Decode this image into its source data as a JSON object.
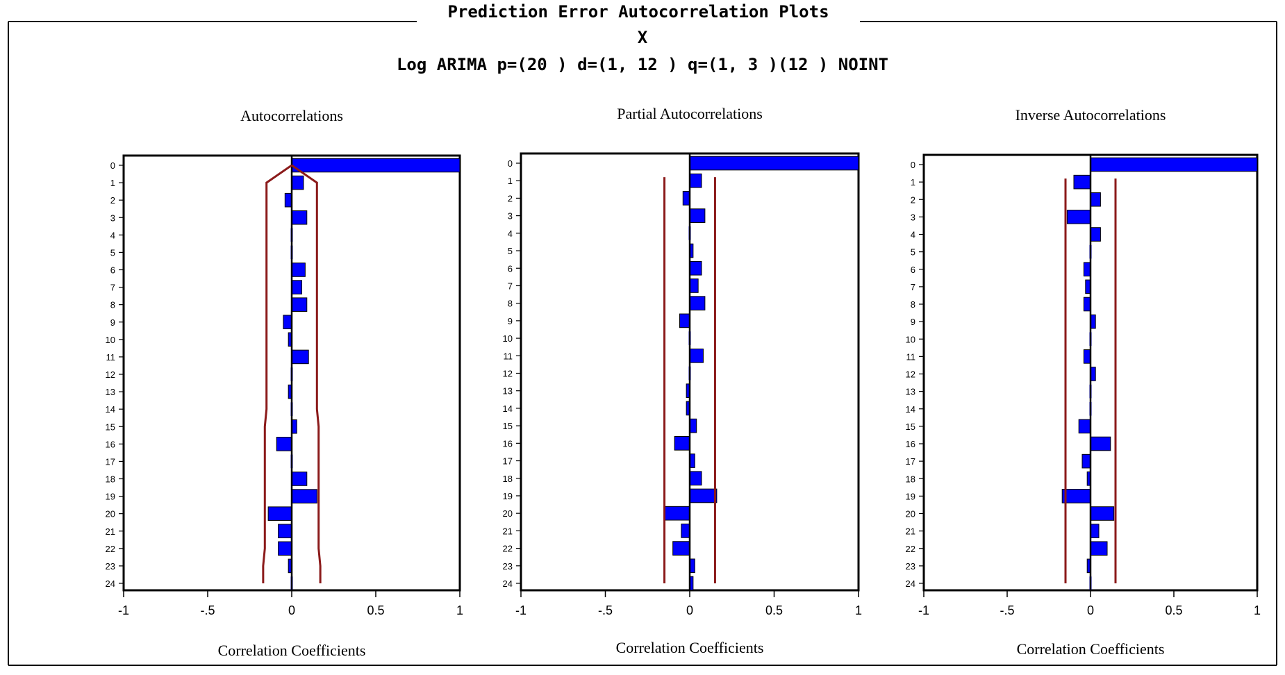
{
  "window_title": "Prediction Error Autocorrelation Plots",
  "subtitle_1": "X",
  "subtitle_2": "Log ARIMA p=(20 ) d=(1, 12 ) q=(1, 3 )(12 ) NOINT",
  "colors": {
    "bar": "#0000ff",
    "bar_edge": "#000000",
    "band": "#8b1a1a",
    "frame": "#000000",
    "background": "#ffffff"
  },
  "chart_data": [
    {
      "type": "bar",
      "orientation": "horizontal",
      "title": "Autocorrelations",
      "xlabel": "Correlation Coefficients",
      "xlim": [
        -1,
        1
      ],
      "xticks": [
        "-1",
        "-.5",
        "0",
        "0.5",
        "1"
      ],
      "xtick_values": [
        -1,
        -0.5,
        0,
        0.5,
        1
      ],
      "categories": [
        "0",
        "1",
        "2",
        "3",
        "4",
        "5",
        "6",
        "7",
        "8",
        "9",
        "10",
        "11",
        "12",
        "13",
        "14",
        "15",
        "16",
        "17",
        "18",
        "19",
        "20",
        "21",
        "22",
        "23",
        "24"
      ],
      "values": [
        1.0,
        0.07,
        -0.04,
        0.09,
        0.01,
        0.01,
        0.08,
        0.06,
        0.09,
        -0.05,
        -0.02,
        0.1,
        0.01,
        -0.02,
        0.01,
        0.03,
        -0.09,
        0.01,
        0.09,
        0.15,
        -0.14,
        -0.08,
        -0.08,
        -0.02,
        0.01
      ],
      "band_type": "widening",
      "band": [
        0.0,
        0.15,
        0.15,
        0.15,
        0.15,
        0.15,
        0.15,
        0.15,
        0.15,
        0.15,
        0.15,
        0.15,
        0.15,
        0.15,
        0.15,
        0.16,
        0.16,
        0.16,
        0.16,
        0.16,
        0.16,
        0.16,
        0.16,
        0.17,
        0.17
      ]
    },
    {
      "type": "bar",
      "orientation": "horizontal",
      "title": "Partial Autocorrelations",
      "xlabel": "Correlation Coefficients",
      "xlim": [
        -1,
        1
      ],
      "xticks": [
        "-1",
        "-.5",
        "0",
        "0.5",
        "1"
      ],
      "xtick_values": [
        -1,
        -0.5,
        0,
        0.5,
        1
      ],
      "categories": [
        "0",
        "1",
        "2",
        "3",
        "4",
        "5",
        "6",
        "7",
        "8",
        "9",
        "10",
        "11",
        "12",
        "13",
        "14",
        "15",
        "16",
        "17",
        "18",
        "19",
        "20",
        "21",
        "22",
        "23",
        "24"
      ],
      "values": [
        1.0,
        0.07,
        -0.04,
        0.09,
        -0.01,
        0.02,
        0.07,
        0.05,
        0.09,
        -0.06,
        -0.01,
        0.08,
        -0.01,
        -0.02,
        -0.02,
        0.04,
        -0.09,
        0.03,
        0.07,
        0.16,
        -0.15,
        -0.05,
        -0.1,
        0.03,
        0.02
      ],
      "band_type": "constant",
      "band": 0.15
    },
    {
      "type": "bar",
      "orientation": "horizontal",
      "title": "Inverse Autocorrelations",
      "xlabel": "Correlation Coefficients",
      "xlim": [
        -1,
        1
      ],
      "xticks": [
        "-1",
        "-.5",
        "0",
        "0.5",
        "1"
      ],
      "xtick_values": [
        -1,
        -0.5,
        0,
        0.5,
        1
      ],
      "categories": [
        "0",
        "1",
        "2",
        "3",
        "4",
        "5",
        "6",
        "7",
        "8",
        "9",
        "10",
        "11",
        "12",
        "13",
        "14",
        "15",
        "16",
        "17",
        "18",
        "19",
        "20",
        "21",
        "22",
        "23",
        "24"
      ],
      "values": [
        1.0,
        -0.1,
        0.06,
        -0.14,
        0.06,
        -0.01,
        -0.04,
        -0.03,
        -0.04,
        0.03,
        0.0,
        -0.04,
        0.03,
        0.0,
        0.0,
        -0.07,
        0.12,
        -0.05,
        -0.02,
        -0.17,
        0.14,
        0.05,
        0.1,
        -0.02,
        -0.01
      ],
      "band_type": "constant",
      "band": 0.15
    }
  ]
}
